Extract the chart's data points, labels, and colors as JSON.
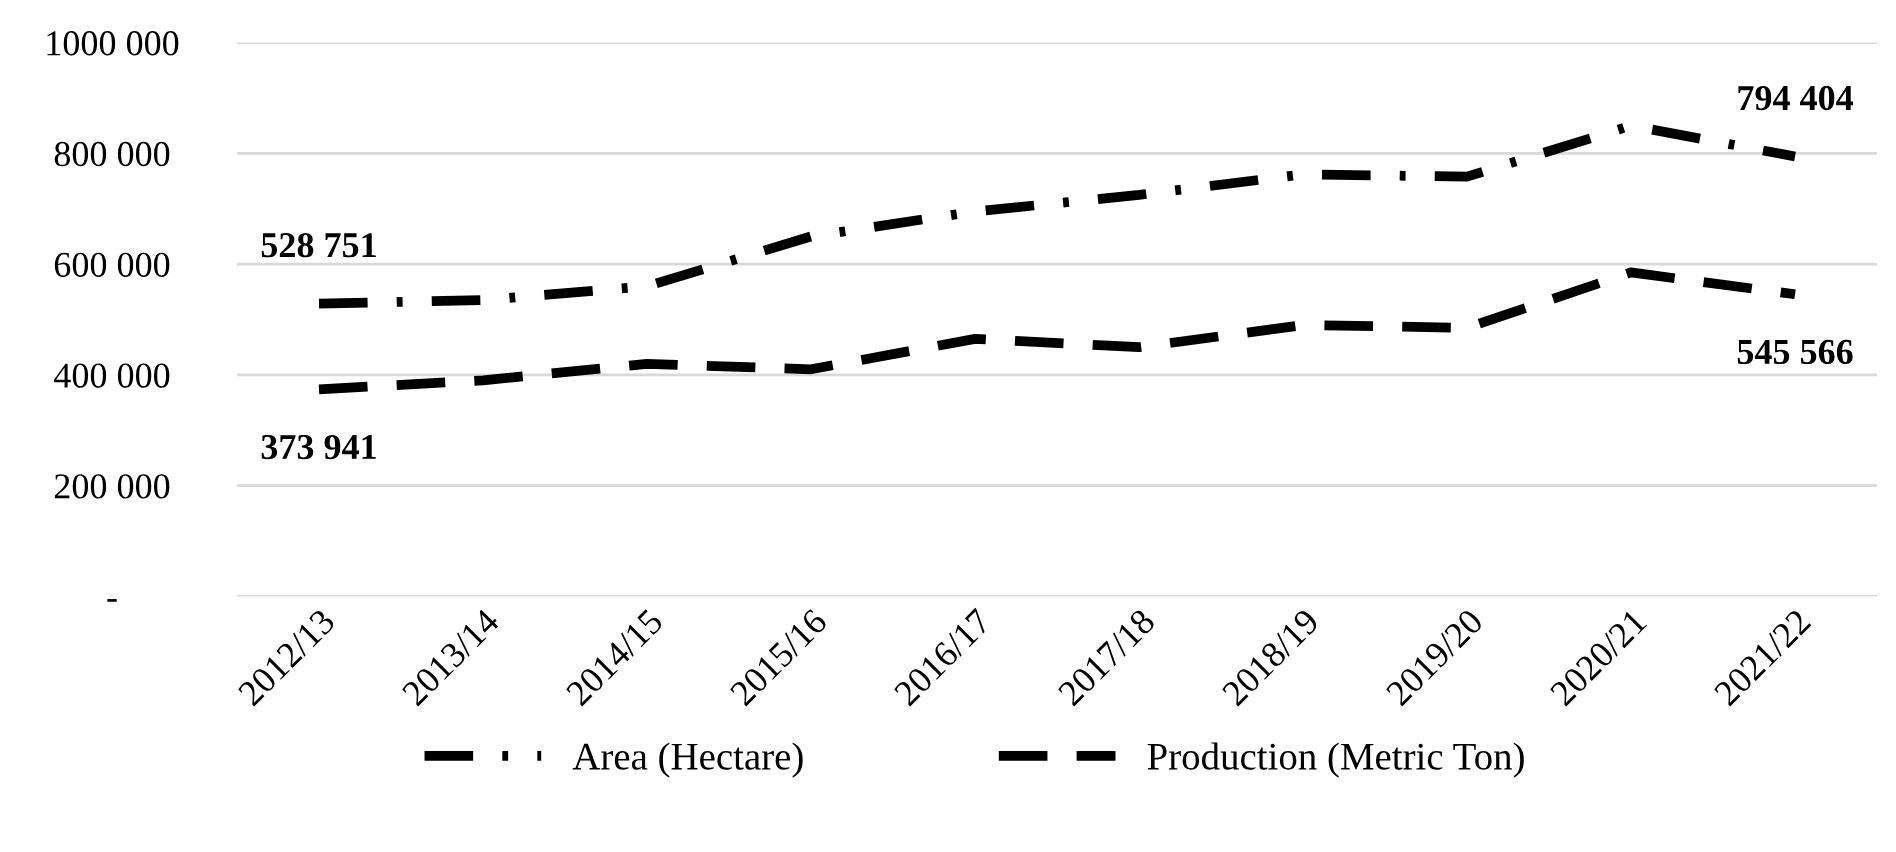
{
  "chart_data": {
    "type": "line",
    "categories": [
      "2012/13",
      "2013/14",
      "2014/15",
      "2015/16",
      "2016/17",
      "2017/18",
      "2018/19",
      "2019/20",
      "2020/21",
      "2021/22"
    ],
    "series": [
      {
        "name": "Area (Hectare)",
        "color": "#000000",
        "line_style": "dashdot",
        "values": [
          528751,
          535000,
          560000,
          650000,
          695000,
          725000,
          762000,
          758000,
          850000,
          794404
        ],
        "value_labels": [
          "528 751",
          null,
          null,
          null,
          null,
          null,
          null,
          null,
          null,
          "794 404"
        ]
      },
      {
        "name": "Production (Metric Ton)",
        "color": "#000000",
        "line_style": "dashed",
        "values": [
          373941,
          390000,
          420000,
          410000,
          465000,
          450000,
          490000,
          485000,
          585000,
          545566
        ],
        "value_labels": [
          "373 941",
          null,
          null,
          null,
          null,
          null,
          null,
          null,
          null,
          "545 566"
        ]
      }
    ],
    "ylim": [
      0,
      1000000
    ],
    "yticks": [
      {
        "value": 0,
        "label": "-"
      },
      {
        "value": 200000,
        "label": "200 000"
      },
      {
        "value": 400000,
        "label": "400 000"
      },
      {
        "value": 600000,
        "label": "600 000"
      },
      {
        "value": 800000,
        "label": "800 000"
      },
      {
        "value": 1000000,
        "label": "1000 000"
      }
    ],
    "grid": "y",
    "legend": "bottom",
    "marker": "none"
  }
}
